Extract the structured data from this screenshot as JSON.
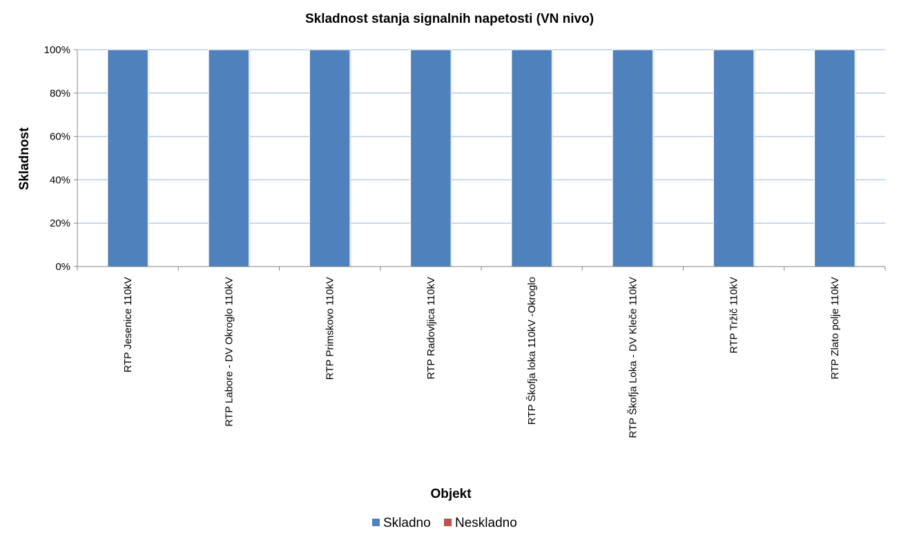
{
  "chart_data": {
    "type": "bar",
    "stacked": true,
    "percent": true,
    "title": "Skladnost stanja signalnih napetosti (VN nivo)",
    "xlabel": "Objekt",
    "ylabel": "Skladnost",
    "ylim": [
      0,
      100
    ],
    "yticks": [
      "0%",
      "20%",
      "40%",
      "60%",
      "80%",
      "100%"
    ],
    "ytick_values": [
      0,
      20,
      40,
      60,
      80,
      100
    ],
    "grid": true,
    "legend_position": "bottom",
    "categories": [
      "RTP Jesenice 110kV",
      "RTP Labore - DV Okroglo 110kV",
      "RTP Primskovo 110kV",
      "RTP Radovljica 110kV",
      "RTP Škofja loka 110kV -Okroglo",
      "RTP Škofja Loka - DV Kleče 110kV",
      "RTP Tržič 110kV",
      "RTP Zlato polje 110kV"
    ],
    "series": [
      {
        "name": "Skladno",
        "color": "#4f81bd",
        "values": [
          100,
          100,
          100,
          100,
          100,
          100,
          100,
          100
        ]
      },
      {
        "name": "Neskladno",
        "color": "#c0504d",
        "values": [
          0,
          0,
          0,
          0,
          0,
          0,
          0,
          0
        ]
      }
    ]
  },
  "colors": {
    "gridline": "#b9cde5",
    "axis": "#868686"
  }
}
